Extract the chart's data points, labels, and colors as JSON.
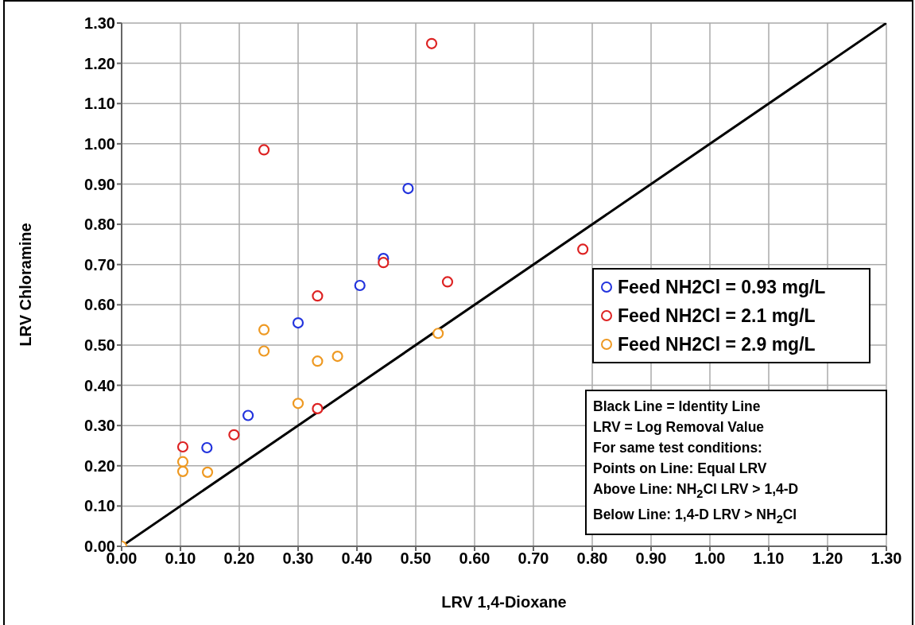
{
  "chart_data": {
    "type": "scatter",
    "xlabel": "LRV 1,4-Dioxane",
    "ylabel": "LRV Chloramine",
    "xlim": [
      0,
      1.3
    ],
    "ylim": [
      0,
      1.3
    ],
    "xticks": [
      {
        "value": 0,
        "label": "0.00"
      },
      {
        "value": 0.1,
        "label": "0.10"
      },
      {
        "value": 0.2,
        "label": "0.20"
      },
      {
        "value": 0.3,
        "label": "0.30"
      },
      {
        "value": 0.4,
        "label": "0.40"
      },
      {
        "value": 0.5,
        "label": "0.50"
      },
      {
        "value": 0.6,
        "label": "0.60"
      },
      {
        "value": 0.7,
        "label": "0.70"
      },
      {
        "value": 0.8,
        "label": "0.80"
      },
      {
        "value": 0.9,
        "label": "0.90"
      },
      {
        "value": 1,
        "label": "1.00"
      },
      {
        "value": 1.1,
        "label": "1.10"
      },
      {
        "value": 1.2,
        "label": "1.20"
      },
      {
        "value": 1.3,
        "label": "1.30"
      }
    ],
    "yticks": [
      {
        "value": 0,
        "label": "0.00"
      },
      {
        "value": 0.1,
        "label": "0.10"
      },
      {
        "value": 0.2,
        "label": "0.20"
      },
      {
        "value": 0.3,
        "label": "0.30"
      },
      {
        "value": 0.4,
        "label": "0.40"
      },
      {
        "value": 0.5,
        "label": "0.50"
      },
      {
        "value": 0.6,
        "label": "0.60"
      },
      {
        "value": 0.7,
        "label": "0.70"
      },
      {
        "value": 0.8,
        "label": "0.80"
      },
      {
        "value": 0.9,
        "label": "0.90"
      },
      {
        "value": 1,
        "label": "1.00"
      },
      {
        "value": 1.1,
        "label": "1.10"
      },
      {
        "value": 1.2,
        "label": "1.20"
      },
      {
        "value": 1.3,
        "label": "1.30"
      }
    ],
    "grid": true,
    "legend": "right",
    "marker": "circle",
    "series": [
      {
        "name": "Feed NH2Cl = 0.93 mg/L",
        "color": "#2233dd",
        "x": [
          0.145,
          0.215,
          0.3,
          0.405,
          0.445,
          0.487
        ],
        "values": [
          0.245,
          0.325,
          0.555,
          0.648,
          0.715,
          0.889
        ]
      },
      {
        "name": "Feed NH2Cl = 2.1 mg/L",
        "color": "#dd2222",
        "x": [
          0.104,
          0.191,
          0.242,
          0.333,
          0.333,
          0.445,
          0.527,
          0.554,
          0.784
        ],
        "values": [
          0.247,
          0.277,
          0.985,
          0.342,
          0.622,
          0.705,
          1.249,
          0.657,
          0.738
        ]
      },
      {
        "name": "Feed NH2Cl = 2.9 mg/L",
        "color": "#ee9922",
        "x": [
          0,
          0.104,
          0.104,
          0.146,
          0.242,
          0.242,
          0.3,
          0.333,
          0.367,
          0.538
        ],
        "values": [
          0,
          0.21,
          0.186,
          0.184,
          0.538,
          0.485,
          0.355,
          0.46,
          0.472,
          0.529
        ]
      },
      {
        "type": "line",
        "color": "#000000",
        "marker": "none",
        "x": [
          0,
          1.3
        ],
        "values": [
          0,
          1.3
        ]
      }
    ],
    "annotations": [
      "Black Line = Identity Line",
      "LRV = Log Removal Value",
      "For same test conditions:",
      "Points on Line: Equal LRV",
      "Above Line: NH$_{2}$Cl LRV > 1,4-D",
      "Below Line:  1,4-D LRV > NH$_{2}$Cl"
    ]
  }
}
